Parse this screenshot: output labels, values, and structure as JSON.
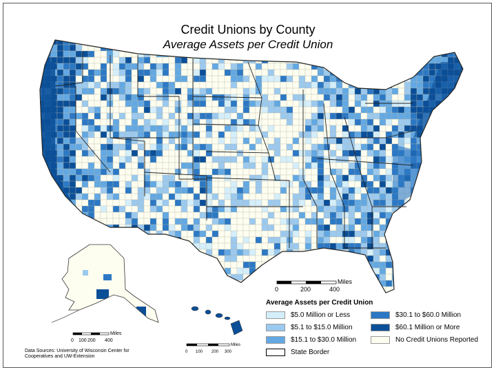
{
  "title": "Credit Unions by County",
  "subtitle": "Average Assets per Credit Union",
  "legend": {
    "title": "Average Assets per Credit Union",
    "items": [
      {
        "label": "$5.0 Million or Less",
        "color": "#d4eefa"
      },
      {
        "label": "$5.1 to $15.0 Million",
        "color": "#9cc9ee"
      },
      {
        "label": "$15.1 to $30.0 Million",
        "color": "#63a8e2"
      },
      {
        "label": "$30.1 to $60.0 Million",
        "color": "#2c78c4"
      },
      {
        "label": "$60.1 Million or More",
        "color": "#0b4f98"
      },
      {
        "label": "No Credit Unions Reported",
        "color": "#fdfdf0"
      },
      {
        "label": "State Border",
        "color": "#ffffff"
      }
    ]
  },
  "scales": {
    "main": {
      "unit": "Miles",
      "ticks": [
        "0",
        "200",
        "400"
      ]
    },
    "alaska": {
      "unit": "Miles",
      "ticks": [
        "0",
        "100",
        "200",
        "400"
      ]
    },
    "hawaii": {
      "unit": "Miles",
      "ticks": [
        "0",
        "100",
        "200",
        "300"
      ]
    }
  },
  "source": "Data Sources: University of Wisconsin Center for Cooperatives and UW-Extension"
}
